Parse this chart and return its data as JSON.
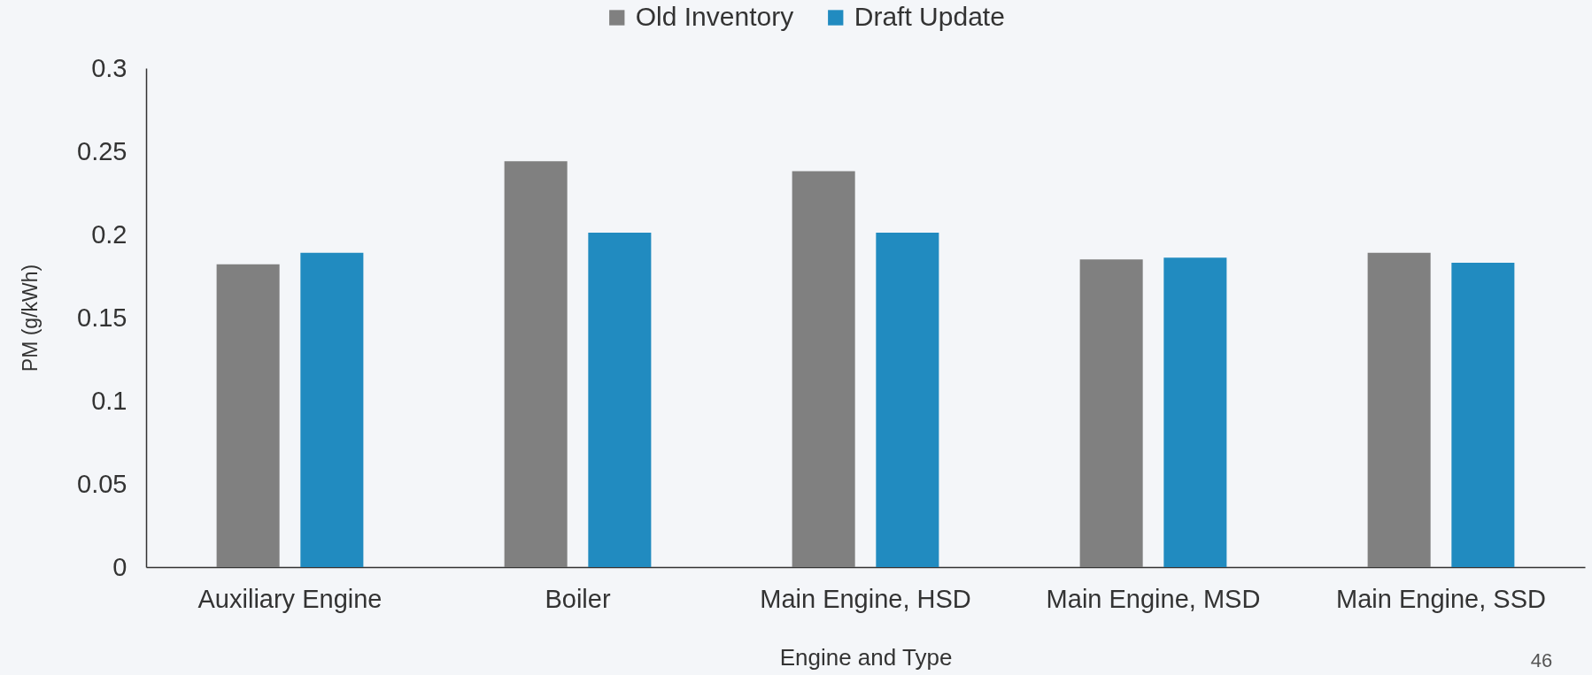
{
  "chart_data": {
    "type": "bar",
    "categories": [
      "Auxiliary Engine",
      "Boiler",
      "Main Engine, HSD",
      "Main Engine, MSD",
      "Main Engine, SSD"
    ],
    "series": [
      {
        "name": "Old Inventory",
        "color": "#808080",
        "values": [
          0.182,
          0.244,
          0.238,
          0.185,
          0.189
        ]
      },
      {
        "name": "Draft Update",
        "color": "#218bc0",
        "values": [
          0.189,
          0.201,
          0.201,
          0.186,
          0.183
        ]
      }
    ],
    "xlabel": "Engine and Type",
    "ylabel": "PM (g/kWh)",
    "ylim": [
      0,
      0.3
    ],
    "yticks": [
      0,
      0.05,
      0.1,
      0.15,
      0.2,
      0.25,
      0.3
    ],
    "grid": false,
    "legend": "top",
    "annotations": [
      "46"
    ]
  }
}
